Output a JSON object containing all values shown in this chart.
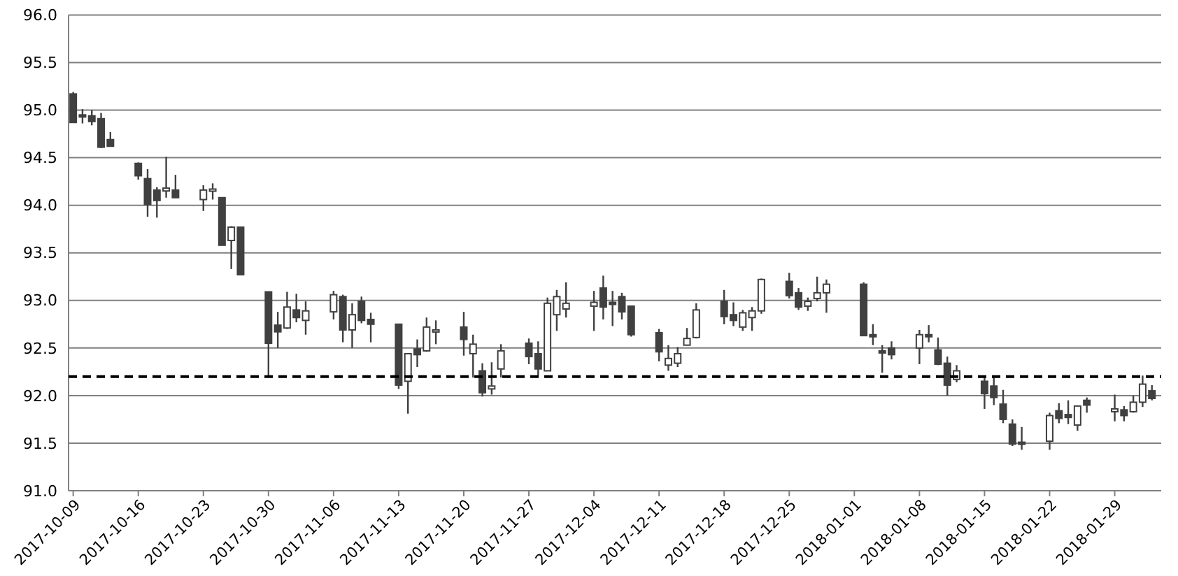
{
  "chart_data": {
    "type": "candlestick",
    "color": "#404040",
    "grid": "y",
    "ylim": [
      91,
      96
    ],
    "yticks": [
      {
        "value": 91,
        "label": "91.0"
      },
      91.5,
      {
        "value": 92,
        "label": "92.0"
      },
      92.5,
      {
        "value": 93,
        "label": "93.0"
      },
      93.5,
      {
        "value": 94,
        "label": "94.0"
      },
      94.5,
      {
        "value": 95,
        "label": "95.0"
      },
      95.5,
      {
        "value": 96,
        "label": "96.0"
      }
    ],
    "xlim": [
      "2017-10-08T12:00",
      "2018-02-03"
    ],
    "xticks": [
      "2017-10-09",
      "2017-10-16",
      "2017-10-23",
      "2017-10-30",
      "2017-11-06",
      "2017-11-13",
      "2017-11-20",
      "2017-11-27",
      "2017-12-04",
      "2017-12-11",
      "2017-12-18",
      "2017-12-25",
      "2018-01-01",
      "2018-01-08",
      "2018-01-15",
      "2018-01-22",
      "2018-01-29"
    ],
    "ref_lines": [
      {
        "axis": "y",
        "value": 92.2,
        "color": "#000000",
        "line_style": "dashed"
      }
    ],
    "x": [
      "2017-10-09",
      "2017-10-10",
      "2017-10-11",
      "2017-10-12",
      "2017-10-13",
      "2017-10-16",
      "2017-10-17",
      "2017-10-18",
      "2017-10-19",
      "2017-10-20",
      "2017-10-23",
      "2017-10-24",
      "2017-10-25",
      "2017-10-26",
      "2017-10-27",
      "2017-10-30",
      "2017-10-31",
      "2017-11-01",
      "2017-11-02",
      "2017-11-03",
      "2017-11-06",
      "2017-11-07",
      "2017-11-08",
      "2017-11-09",
      "2017-11-10",
      "2017-11-13",
      "2017-11-14",
      "2017-11-15",
      "2017-11-16",
      "2017-11-17",
      "2017-11-20",
      "2017-11-21",
      "2017-11-22",
      "2017-11-23",
      "2017-11-24",
      "2017-11-27",
      "2017-11-28",
      "2017-11-29",
      "2017-11-30",
      "2017-12-01",
      "2017-12-04",
      "2017-12-05",
      "2017-12-06",
      "2017-12-07",
      "2017-12-08",
      "2017-12-11",
      "2017-12-12",
      "2017-12-13",
      "2017-12-14",
      "2017-12-15",
      "2017-12-18",
      "2017-12-19",
      "2017-12-20",
      "2017-12-21",
      "2017-12-22",
      "2017-12-25",
      "2017-12-26",
      "2017-12-27",
      "2017-12-28",
      "2017-12-29",
      "2018-01-02",
      "2018-01-03",
      "2018-01-04",
      "2018-01-05",
      "2018-01-08",
      "2018-01-09",
      "2018-01-10",
      "2018-01-11",
      "2018-01-12",
      "2018-01-15",
      "2018-01-16",
      "2018-01-17",
      "2018-01-18",
      "2018-01-19",
      "2018-01-22",
      "2018-01-23",
      "2018-01-24",
      "2018-01-25",
      "2018-01-26",
      "2018-01-29",
      "2018-01-30",
      "2018-01-31",
      "2018-02-01",
      "2018-02-02"
    ],
    "ohlc": [
      [
        95.17,
        95.19,
        94.87,
        94.87
      ],
      [
        94.95,
        95.01,
        94.86,
        94.93
      ],
      [
        94.94,
        95.0,
        94.84,
        94.88
      ],
      [
        94.91,
        94.97,
        94.6,
        94.61
      ],
      [
        94.69,
        94.77,
        94.62,
        94.62
      ],
      [
        94.44,
        94.45,
        94.27,
        94.31
      ],
      [
        94.28,
        94.38,
        93.88,
        94.01
      ],
      [
        94.16,
        94.19,
        93.87,
        94.05
      ],
      [
        94.15,
        94.51,
        94.08,
        94.18
      ],
      [
        94.16,
        94.32,
        94.08,
        94.08
      ],
      [
        94.06,
        94.21,
        93.94,
        94.16
      ],
      [
        94.15,
        94.23,
        94.06,
        94.17
      ],
      [
        94.08,
        94.08,
        93.58,
        93.58
      ],
      [
        93.63,
        93.78,
        93.33,
        93.77
      ],
      [
        93.77,
        93.77,
        93.27,
        93.27
      ],
      [
        93.09,
        93.09,
        92.2,
        92.55
      ],
      [
        92.74,
        92.88,
        92.5,
        92.67
      ],
      [
        92.71,
        93.09,
        92.7,
        92.93
      ],
      [
        92.9,
        93.07,
        92.77,
        92.82
      ],
      [
        92.79,
        92.99,
        92.64,
        92.89
      ],
      [
        92.88,
        93.1,
        92.8,
        93.06
      ],
      [
        93.04,
        93.06,
        92.56,
        92.69
      ],
      [
        92.69,
        92.97,
        92.5,
        92.85
      ],
      [
        92.99,
        93.04,
        92.76,
        92.79
      ],
      [
        92.8,
        92.87,
        92.56,
        92.75
      ],
      [
        92.75,
        92.75,
        92.07,
        92.11
      ],
      [
        92.15,
        92.44,
        91.81,
        92.44
      ],
      [
        92.49,
        92.59,
        92.3,
        92.43
      ],
      [
        92.47,
        92.82,
        92.46,
        92.72
      ],
      [
        92.68,
        92.79,
        92.54,
        92.69
      ],
      [
        92.72,
        92.88,
        92.42,
        92.59
      ],
      [
        92.44,
        92.64,
        92.19,
        92.54
      ],
      [
        92.26,
        92.34,
        91.99,
        92.03
      ],
      [
        92.07,
        92.35,
        92.01,
        92.1
      ],
      [
        92.28,
        92.54,
        92.19,
        92.47
      ],
      [
        92.55,
        92.6,
        92.33,
        92.41
      ],
      [
        92.44,
        92.57,
        92.21,
        92.28
      ],
      [
        92.26,
        93.03,
        92.26,
        92.97
      ],
      [
        92.85,
        93.11,
        92.68,
        93.04
      ],
      [
        92.91,
        93.19,
        92.82,
        92.97
      ],
      [
        92.94,
        93.1,
        92.68,
        92.98
      ],
      [
        93.13,
        93.26,
        92.8,
        92.93
      ],
      [
        92.98,
        93.1,
        92.73,
        92.96
      ],
      [
        93.04,
        93.08,
        92.8,
        92.88
      ],
      [
        92.94,
        92.94,
        92.62,
        92.64
      ],
      [
        92.66,
        92.7,
        92.36,
        92.46
      ],
      [
        92.32,
        92.53,
        92.26,
        92.39
      ],
      [
        92.34,
        92.51,
        92.3,
        92.44
      ],
      [
        92.53,
        92.71,
        92.53,
        92.6
      ],
      [
        92.61,
        92.97,
        92.6,
        92.9
      ],
      [
        92.99,
        93.11,
        92.75,
        92.83
      ],
      [
        92.85,
        92.98,
        92.73,
        92.79
      ],
      [
        92.72,
        92.9,
        92.68,
        92.87
      ],
      [
        92.82,
        92.93,
        92.68,
        92.89
      ],
      [
        92.89,
        93.23,
        92.86,
        93.22
      ],
      [
        93.2,
        93.29,
        93.02,
        93.05
      ],
      [
        93.08,
        93.13,
        92.9,
        92.93
      ],
      [
        92.94,
        93.03,
        92.89,
        92.99
      ],
      [
        93.02,
        93.25,
        92.99,
        93.08
      ],
      [
        93.08,
        93.22,
        92.87,
        93.17
      ],
      [
        93.17,
        93.19,
        92.63,
        92.63
      ],
      [
        92.64,
        92.75,
        92.53,
        92.63
      ],
      [
        92.47,
        92.53,
        92.24,
        92.46
      ],
      [
        92.5,
        92.57,
        92.38,
        92.43
      ],
      [
        92.5,
        92.69,
        92.33,
        92.64
      ],
      [
        92.64,
        92.74,
        92.56,
        92.63
      ],
      [
        92.48,
        92.61,
        92.32,
        92.33
      ],
      [
        92.34,
        92.41,
        92.0,
        92.11
      ],
      [
        92.17,
        92.32,
        92.14,
        92.26
      ],
      [
        92.15,
        92.2,
        91.86,
        92.02
      ],
      [
        92.1,
        92.21,
        91.9,
        91.98
      ],
      [
        91.91,
        92.06,
        91.71,
        91.75
      ],
      [
        91.7,
        91.75,
        91.47,
        91.49
      ],
      [
        91.51,
        91.67,
        91.43,
        91.5
      ],
      [
        91.52,
        91.82,
        91.43,
        91.79
      ],
      [
        91.84,
        91.92,
        91.71,
        91.76
      ],
      [
        91.8,
        91.95,
        91.7,
        91.77
      ],
      [
        91.69,
        91.89,
        91.63,
        91.89
      ],
      [
        91.95,
        91.98,
        91.82,
        91.9
      ],
      [
        91.83,
        92.01,
        91.73,
        91.86
      ],
      [
        91.85,
        91.89,
        91.73,
        91.79
      ],
      [
        91.83,
        92.0,
        91.82,
        91.93
      ],
      [
        91.93,
        92.21,
        91.88,
        92.12
      ],
      [
        92.05,
        92.11,
        91.95,
        91.97
      ]
    ]
  }
}
